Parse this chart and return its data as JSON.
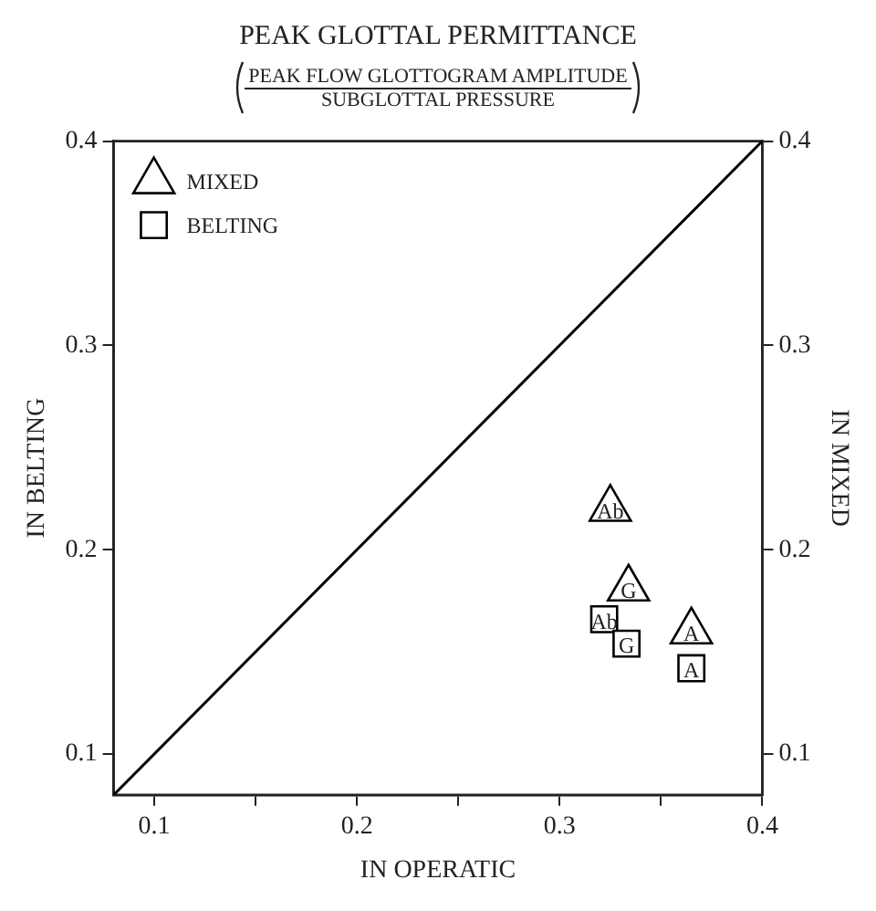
{
  "chart_data": {
    "type": "scatter",
    "title": "PEAK GLOTTAL PERMITTANCE",
    "subtitle": "PEAK FLOW GLOTTOGRAM AMPLITUDE",
    "xlabel": "IN OPERATIC",
    "ylabel": "IN BELTING",
    "y2label": "IN MIXED",
    "series": [
      {
        "name": "BELTING",
        "marker": "square",
        "color": "#000000",
        "x": [
          0.322,
          0.333,
          0.365
        ],
        "values": [
          0.166,
          0.154,
          0.142
        ]
      },
      {
        "name": "MIXED",
        "marker": "triangle",
        "color": "#000000",
        "axis": "y2",
        "x": [
          0.325,
          0.334,
          0.365
        ],
        "values": [
          0.22,
          0.181,
          0.16
        ]
      },
      {
        "type": "line",
        "color": "#000000",
        "x": [
          0.08,
          0.4
        ],
        "values": [
          0.08,
          0.4
        ],
        "marker": "none"
      }
    ],
    "annotations": [
      "SUBGLOTTAL PRESSURE",
      {
        "text": "Ab",
        "x": 0.325,
        "y": 0.22
      },
      {
        "text": "G",
        "x": 0.334,
        "y": 0.181
      },
      {
        "text": "A",
        "x": 0.365,
        "y": 0.16
      },
      {
        "text": "Ab",
        "x": 0.322,
        "y": 0.166
      },
      {
        "text": "G",
        "x": 0.333,
        "y": 0.154
      },
      {
        "text": "A",
        "x": 0.365,
        "y": 0.142
      }
    ],
    "xlim": [
      0.08,
      0.4
    ],
    "xticks": [
      0.1,
      {
        "value": 0.15,
        "label": null
      },
      0.2,
      {
        "value": 0.25,
        "label": null
      },
      0.3,
      {
        "value": 0.35,
        "label": null
      },
      0.4
    ],
    "ylim": [
      0.08,
      0.4
    ],
    "yticks": [
      0.1,
      0.2,
      0.3,
      0.4
    ],
    "y2lim": [
      0.08,
      0.4
    ],
    "y2ticks": [
      0.1,
      0.2,
      0.3,
      0.4
    ],
    "grid": false,
    "legend": "top left"
  }
}
